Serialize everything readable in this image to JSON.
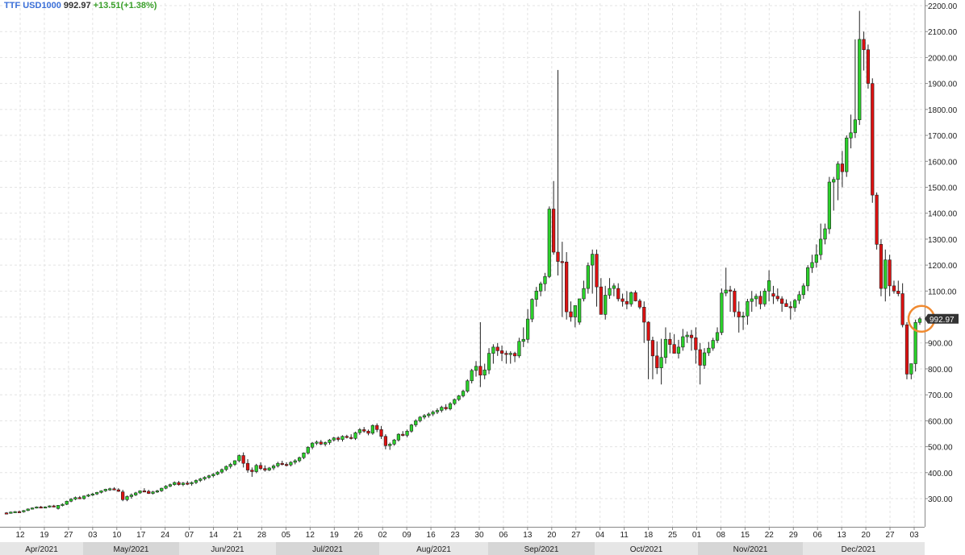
{
  "header": {
    "symbol": "TTF USD1000",
    "last": "992.97",
    "change": "+13.51(+1.38%)"
  },
  "price_tag": "992.97",
  "colors": {
    "up": "#2ad12a",
    "down": "#dd1111",
    "wick": "#222222",
    "grid": "#e3e3e3",
    "axis_text": "#222222",
    "month_band_a": "#e6e6e6",
    "month_band_b": "#d6d6d6",
    "highlight_ring": "#f08a30",
    "price_tag_bg": "#333333"
  },
  "chart_data": {
    "type": "candlestick",
    "title": "",
    "xlabel": "",
    "ylabel": "",
    "ylim": [
      200,
      2200
    ],
    "yticks": [
      "2200.00",
      "2100.00",
      "2000.00",
      "1900.00",
      "1800.00",
      "1700.00",
      "1600.00",
      "1500.00",
      "1400.00",
      "1300.00",
      "1200.00",
      "1100.00",
      "1000.00",
      "900.00",
      "800.00",
      "700.00",
      "600.00",
      "500.00",
      "400.00",
      "300.00"
    ],
    "day_labels": [
      "12",
      "19",
      "27",
      "03",
      "10",
      "17",
      "24",
      "07",
      "14",
      "21",
      "28",
      "05",
      "12",
      "19",
      "26",
      "02",
      "09",
      "16",
      "23",
      "30",
      "06",
      "13",
      "20",
      "27",
      "04",
      "11",
      "18",
      "25",
      "01",
      "08",
      "15",
      "22",
      "29",
      "06",
      "13",
      "20",
      "27",
      "03"
    ],
    "month_labels": [
      "Apr/2021",
      "May/2021",
      "Jun/2021",
      "Jul/2021",
      "Aug/2021",
      "Sep/2021",
      "Oct/2021",
      "Nov/2021",
      "Dec/2021"
    ],
    "candles": [
      [
        245,
        248,
        240,
        244
      ],
      [
        244,
        250,
        242,
        248
      ],
      [
        248,
        252,
        245,
        250
      ],
      [
        250,
        254,
        247,
        249
      ],
      [
        249,
        256,
        246,
        254
      ],
      [
        254,
        262,
        252,
        260
      ],
      [
        260,
        266,
        258,
        264
      ],
      [
        264,
        270,
        262,
        268
      ],
      [
        268,
        272,
        265,
        266
      ],
      [
        266,
        270,
        263,
        268
      ],
      [
        268,
        274,
        265,
        272
      ],
      [
        272,
        276,
        268,
        270
      ],
      [
        262,
        275,
        258,
        274
      ],
      [
        274,
        282,
        270,
        278
      ],
      [
        278,
        292,
        275,
        290
      ],
      [
        290,
        302,
        286,
        298
      ],
      [
        298,
        308,
        294,
        304
      ],
      [
        304,
        310,
        298,
        300
      ],
      [
        300,
        312,
        296,
        310
      ],
      [
        310,
        318,
        306,
        314
      ],
      [
        314,
        322,
        310,
        318
      ],
      [
        318,
        326,
        314,
        324
      ],
      [
        324,
        332,
        320,
        330
      ],
      [
        330,
        338,
        326,
        336
      ],
      [
        336,
        342,
        330,
        338
      ],
      [
        338,
        344,
        332,
        334
      ],
      [
        334,
        340,
        326,
        328
      ],
      [
        326,
        334,
        290,
        296
      ],
      [
        296,
        312,
        290,
        308
      ],
      [
        308,
        320,
        300,
        314
      ],
      [
        314,
        326,
        310,
        322
      ],
      [
        322,
        332,
        318,
        330
      ],
      [
        330,
        340,
        326,
        328
      ],
      [
        328,
        334,
        318,
        320
      ],
      [
        320,
        330,
        316,
        326
      ],
      [
        326,
        334,
        322,
        330
      ],
      [
        330,
        342,
        326,
        340
      ],
      [
        340,
        352,
        336,
        348
      ],
      [
        348,
        358,
        344,
        354
      ],
      [
        354,
        366,
        350,
        362
      ],
      [
        362,
        368,
        350,
        354
      ],
      [
        354,
        364,
        348,
        360
      ],
      [
        360,
        368,
        352,
        358
      ],
      [
        358,
        366,
        350,
        362
      ],
      [
        362,
        374,
        356,
        370
      ],
      [
        370,
        380,
        364,
        376
      ],
      [
        376,
        386,
        370,
        382
      ],
      [
        382,
        392,
        376,
        388
      ],
      [
        388,
        398,
        382,
        394
      ],
      [
        394,
        406,
        390,
        402
      ],
      [
        402,
        416,
        396,
        412
      ],
      [
        412,
        428,
        406,
        424
      ],
      [
        424,
        438,
        416,
        432
      ],
      [
        432,
        448,
        426,
        446
      ],
      [
        446,
        470,
        440,
        466
      ],
      [
        466,
        478,
        420,
        436
      ],
      [
        436,
        452,
        400,
        410
      ],
      [
        410,
        420,
        384,
        404
      ],
      [
        404,
        434,
        398,
        428
      ],
      [
        428,
        440,
        410,
        416
      ],
      [
        416,
        428,
        404,
        410
      ],
      [
        410,
        422,
        406,
        418
      ],
      [
        418,
        432,
        410,
        426
      ],
      [
        426,
        442,
        420,
        436
      ],
      [
        436,
        446,
        428,
        432
      ],
      [
        432,
        440,
        424,
        430
      ],
      [
        430,
        444,
        424,
        440
      ],
      [
        440,
        452,
        432,
        446
      ],
      [
        446,
        462,
        440,
        458
      ],
      [
        458,
        478,
        452,
        476
      ],
      [
        476,
        502,
        470,
        498
      ],
      [
        498,
        518,
        490,
        514
      ],
      [
        514,
        524,
        506,
        518
      ],
      [
        518,
        526,
        506,
        510
      ],
      [
        510,
        520,
        502,
        516
      ],
      [
        516,
        530,
        508,
        526
      ],
      [
        526,
        538,
        520,
        534
      ],
      [
        534,
        540,
        520,
        528
      ],
      [
        528,
        544,
        520,
        540
      ],
      [
        540,
        546,
        532,
        536
      ],
      [
        536,
        548,
        528,
        532
      ],
      [
        532,
        558,
        526,
        554
      ],
      [
        554,
        572,
        546,
        566
      ],
      [
        566,
        576,
        554,
        560
      ],
      [
        560,
        566,
        544,
        552
      ],
      [
        552,
        586,
        546,
        582
      ],
      [
        582,
        590,
        556,
        566
      ],
      [
        566,
        580,
        530,
        540
      ],
      [
        540,
        548,
        490,
        504
      ],
      [
        504,
        516,
        488,
        510
      ],
      [
        510,
        530,
        504,
        526
      ],
      [
        526,
        552,
        520,
        548
      ],
      [
        548,
        560,
        540,
        544
      ],
      [
        544,
        566,
        536,
        560
      ],
      [
        560,
        588,
        554,
        584
      ],
      [
        584,
        606,
        576,
        600
      ],
      [
        600,
        618,
        594,
        614
      ],
      [
        614,
        626,
        606,
        620
      ],
      [
        620,
        632,
        612,
        626
      ],
      [
        626,
        640,
        618,
        634
      ],
      [
        634,
        648,
        626,
        640
      ],
      [
        640,
        658,
        632,
        652
      ],
      [
        652,
        664,
        640,
        646
      ],
      [
        646,
        672,
        640,
        666
      ],
      [
        666,
        686,
        660,
        682
      ],
      [
        682,
        700,
        676,
        696
      ],
      [
        696,
        720,
        690,
        714
      ],
      [
        714,
        760,
        708,
        754
      ],
      [
        754,
        800,
        744,
        794
      ],
      [
        794,
        830,
        770,
        810
      ],
      [
        810,
        980,
        730,
        776
      ],
      [
        776,
        820,
        760,
        796
      ],
      [
        796,
        880,
        780,
        860
      ],
      [
        860,
        895,
        820,
        884
      ],
      [
        884,
        900,
        850,
        870
      ],
      [
        870,
        890,
        830,
        860
      ],
      [
        860,
        870,
        820,
        856
      ],
      [
        856,
        868,
        820,
        860
      ],
      [
        860,
        866,
        826,
        850
      ],
      [
        850,
        920,
        842,
        906
      ],
      [
        906,
        960,
        884,
        914
      ],
      [
        914,
        1030,
        900,
        992
      ],
      [
        992,
        1072,
        980,
        1068
      ],
      [
        1068,
        1116,
        1040,
        1100
      ],
      [
        1100,
        1136,
        1080,
        1128
      ],
      [
        1128,
        1170,
        1100,
        1156
      ],
      [
        1156,
        1426,
        1150,
        1416
      ],
      [
        1416,
        1524,
        1240,
        1250
      ],
      [
        1250,
        1952,
        1160,
        1214
      ],
      [
        1214,
        1290,
        1000,
        1212
      ],
      [
        1212,
        1250,
        990,
        1020
      ],
      [
        1020,
        1060,
        982,
        1000
      ],
      [
        1000,
        1024,
        960,
        1044
      ],
      [
        980,
        1060,
        970,
        1070
      ],
      [
        1070,
        1140,
        1060,
        1110
      ],
      [
        1110,
        1210,
        1090,
        1198
      ],
      [
        1200,
        1260,
        1090,
        1242
      ],
      [
        1242,
        1260,
        1040,
        1116
      ],
      [
        1116,
        1150,
        1010,
        1010
      ],
      [
        1010,
        1120,
        990,
        1084
      ],
      [
        1084,
        1150,
        1070,
        1110
      ],
      [
        1110,
        1130,
        1080,
        1120
      ],
      [
        1110,
        1130,
        1060,
        1070
      ],
      [
        1070,
        1090,
        1040,
        1060
      ],
      [
        1060,
        1100,
        1030,
        1050
      ],
      [
        1050,
        1098,
        1040,
        1094
      ],
      [
        1094,
        1102,
        1060,
        1062
      ],
      [
        1062,
        1070,
        1030,
        1038
      ],
      [
        1038,
        1060,
        900,
        980
      ],
      [
        980,
        984,
        760,
        910
      ],
      [
        910,
        924,
        760,
        850
      ],
      [
        850,
        906,
        780,
        804
      ],
      [
        804,
        916,
        740,
        844
      ],
      [
        844,
        960,
        820,
        914
      ],
      [
        914,
        940,
        860,
        894
      ],
      [
        894,
        934,
        860,
        860
      ],
      [
        860,
        912,
        840,
        884
      ],
      [
        884,
        954,
        870,
        924
      ],
      [
        924,
        944,
        900,
        930
      ],
      [
        930,
        950,
        870,
        920
      ],
      [
        920,
        960,
        820,
        874
      ],
      [
        874,
        900,
        740,
        814
      ],
      [
        814,
        880,
        800,
        862
      ],
      [
        862,
        904,
        850,
        880
      ],
      [
        880,
        920,
        870,
        910
      ],
      [
        910,
        960,
        900,
        940
      ],
      [
        940,
        1110,
        930,
        1092
      ],
      [
        1092,
        1190,
        1080,
        1104
      ],
      [
        1104,
        1120,
        1020,
        1100
      ],
      [
        1100,
        1110,
        1000,
        1020
      ],
      [
        1020,
        1060,
        940,
        1000
      ],
      [
        1000,
        1020,
        950,
        1004
      ],
      [
        1004,
        1070,
        970,
        1060
      ],
      [
        1060,
        1100,
        1020,
        1070
      ],
      [
        1070,
        1090,
        1040,
        1080
      ],
      [
        1080,
        1100,
        1030,
        1050
      ],
      [
        1050,
        1110,
        1040,
        1100
      ],
      [
        1100,
        1180,
        1060,
        1140
      ],
      [
        1090,
        1120,
        1050,
        1080
      ],
      [
        1080,
        1110,
        1060,
        1070
      ],
      [
        1070,
        1080,
        1020,
        1052
      ],
      [
        1052,
        1068,
        1040,
        1040
      ],
      [
        1040,
        1060,
        990,
        1036
      ],
      [
        1036,
        1070,
        1020,
        1064
      ],
      [
        1064,
        1100,
        1050,
        1086
      ],
      [
        1086,
        1130,
        1070,
        1120
      ],
      [
        1120,
        1200,
        1100,
        1190
      ],
      [
        1190,
        1240,
        1170,
        1210
      ],
      [
        1210,
        1280,
        1190,
        1240
      ],
      [
        1240,
        1360,
        1220,
        1300
      ],
      [
        1300,
        1360,
        1280,
        1340
      ],
      [
        1340,
        1540,
        1320,
        1520
      ],
      [
        1520,
        1540,
        1410,
        1530
      ],
      [
        1530,
        1600,
        1450,
        1590
      ],
      [
        1590,
        1640,
        1500,
        1560
      ],
      [
        1560,
        1700,
        1540,
        1690
      ],
      [
        1690,
        1780,
        1650,
        1710
      ],
      [
        1710,
        2070,
        1690,
        1760
      ],
      [
        1760,
        2180,
        1740,
        2070
      ],
      [
        2070,
        2100,
        1950,
        2030
      ],
      [
        2030,
        2050,
        1880,
        1900
      ],
      [
        1900,
        1920,
        1440,
        1470
      ],
      [
        1470,
        1480,
        1260,
        1280
      ],
      [
        1280,
        1300,
        1080,
        1110
      ],
      [
        1110,
        1260,
        1060,
        1220
      ],
      [
        1220,
        1240,
        1080,
        1120
      ],
      [
        1120,
        1140,
        1090,
        1100
      ],
      [
        1100,
        1140,
        1080,
        1090
      ],
      [
        1090,
        1130,
        960,
        970
      ],
      [
        970,
        980,
        760,
        780
      ],
      [
        780,
        810,
        760,
        820
      ],
      [
        820,
        990,
        790,
        979
      ],
      [
        979,
        1000,
        970,
        993
      ]
    ]
  }
}
